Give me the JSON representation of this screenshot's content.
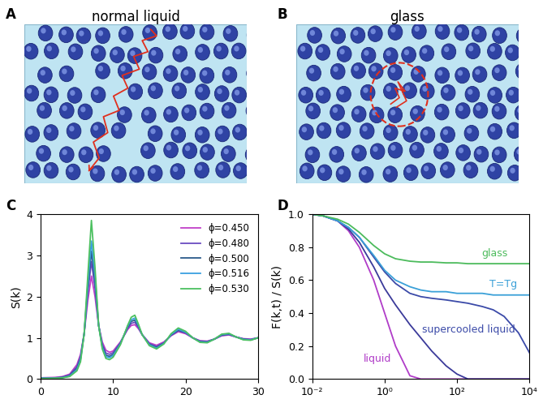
{
  "diagrams": [
    {
      "panel": "A",
      "title": "normal liquid"
    },
    {
      "panel": "B",
      "title": "glass"
    }
  ],
  "chart_data": [
    {
      "panel": "C",
      "type": "line",
      "y_label": "S(k)",
      "x": [
        0,
        2,
        3,
        4,
        5,
        5.5,
        6,
        6.5,
        7,
        7.5,
        8,
        8.5,
        9,
        9.5,
        10,
        11,
        12,
        12.5,
        13,
        13.5,
        14,
        15,
        16,
        17,
        18,
        19,
        20,
        21,
        22,
        23,
        24,
        25,
        26,
        27,
        28,
        29,
        30
      ],
      "xlim": [
        0,
        30
      ],
      "xticks": [
        0,
        10,
        20,
        30
      ],
      "ylim": [
        0,
        4
      ],
      "yticks": [
        0,
        1,
        2,
        3,
        4
      ],
      "legend": "upper right",
      "series": [
        {
          "name": "ϕ=0.450",
          "color": "#c040c8",
          "values": [
            0.03,
            0.04,
            0.06,
            0.12,
            0.35,
            0.6,
            1.1,
            1.9,
            2.5,
            2.0,
            1.3,
            0.9,
            0.7,
            0.65,
            0.68,
            0.9,
            1.2,
            1.3,
            1.32,
            1.22,
            1.08,
            0.88,
            0.82,
            0.9,
            1.05,
            1.15,
            1.1,
            1.0,
            0.93,
            0.92,
            0.97,
            1.05,
            1.07,
            1.02,
            0.98,
            0.97,
            1.0
          ]
        },
        {
          "name": "ϕ=0.480",
          "color": "#6a4cc0",
          "values": [
            0.02,
            0.03,
            0.05,
            0.1,
            0.3,
            0.55,
            1.1,
            2.1,
            2.85,
            2.2,
            1.3,
            0.85,
            0.63,
            0.6,
            0.64,
            0.88,
            1.23,
            1.35,
            1.38,
            1.25,
            1.08,
            0.86,
            0.79,
            0.88,
            1.06,
            1.17,
            1.12,
            1.0,
            0.92,
            0.91,
            0.97,
            1.06,
            1.08,
            1.02,
            0.97,
            0.96,
            1.0
          ]
        },
        {
          "name": "ϕ=0.500",
          "color": "#2a5a8a",
          "values": [
            0.02,
            0.02,
            0.04,
            0.08,
            0.26,
            0.5,
            1.1,
            2.2,
            3.1,
            2.35,
            1.3,
            0.8,
            0.58,
            0.55,
            0.6,
            0.86,
            1.26,
            1.4,
            1.43,
            1.28,
            1.08,
            0.84,
            0.77,
            0.87,
            1.07,
            1.19,
            1.13,
            1.0,
            0.91,
            0.9,
            0.97,
            1.07,
            1.09,
            1.02,
            0.97,
            0.95,
            1.0
          ]
        },
        {
          "name": "ϕ=0.516",
          "color": "#3aa0e0",
          "values": [
            0.02,
            0.02,
            0.03,
            0.07,
            0.23,
            0.47,
            1.1,
            2.3,
            3.35,
            2.5,
            1.3,
            0.77,
            0.54,
            0.52,
            0.57,
            0.85,
            1.28,
            1.44,
            1.48,
            1.3,
            1.08,
            0.83,
            0.75,
            0.86,
            1.08,
            1.21,
            1.14,
            1.0,
            0.9,
            0.89,
            0.97,
            1.08,
            1.1,
            1.02,
            0.96,
            0.95,
            1.0
          ]
        },
        {
          "name": "ϕ=0.530",
          "color": "#4cc060",
          "values": [
            0.01,
            0.02,
            0.03,
            0.06,
            0.2,
            0.42,
            1.1,
            2.5,
            3.85,
            2.7,
            1.3,
            0.73,
            0.5,
            0.47,
            0.53,
            0.83,
            1.3,
            1.5,
            1.55,
            1.33,
            1.08,
            0.81,
            0.73,
            0.85,
            1.1,
            1.24,
            1.16,
            1.0,
            0.89,
            0.88,
            0.97,
            1.09,
            1.11,
            1.02,
            0.95,
            0.94,
            1.0
          ]
        }
      ]
    },
    {
      "panel": "D",
      "type": "line",
      "y_label": "F(k,t) / S(k)",
      "log": "x",
      "x": [
        0.01,
        0.02,
        0.05,
        0.1,
        0.2,
        0.5,
        1,
        2,
        5,
        10,
        20,
        50,
        100,
        200,
        500,
        1000,
        2000,
        5000,
        10000
      ],
      "xlim": [
        0.01,
        10000
      ],
      "xticks": [
        {
          "value": 0.01,
          "label": "10⁻²"
        },
        {
          "value": 1,
          "label": "10⁰"
        },
        {
          "value": 100,
          "label": "10²"
        },
        {
          "value": 10000,
          "label": "10⁴"
        }
      ],
      "ylim": [
        0,
        1.0
      ],
      "yticks": [
        {
          "value": 0,
          "label": "0.0"
        },
        0.2,
        0.4,
        0.6,
        0.8,
        {
          "value": 1,
          "label": "1.0"
        }
      ],
      "series": [
        {
          "name": "liquid",
          "color": "#b03cc8",
          "values": [
            1.0,
            0.99,
            0.96,
            0.9,
            0.8,
            0.6,
            0.4,
            0.2,
            0.02,
            0,
            0,
            0,
            0,
            0,
            0,
            0,
            0,
            0,
            0
          ]
        },
        {
          "color": "#3b3a9a",
          "values": [
            1.0,
            0.99,
            0.96,
            0.91,
            0.83,
            0.68,
            0.55,
            0.45,
            0.33,
            0.25,
            0.17,
            0.08,
            0.03,
            0.0,
            0,
            0,
            0,
            0,
            0
          ]
        },
        {
          "name": "supercooled liquid",
          "color": "#3b4aa8",
          "values": [
            1.0,
            0.99,
            0.96,
            0.92,
            0.86,
            0.74,
            0.65,
            0.58,
            0.52,
            0.5,
            0.49,
            0.48,
            0.47,
            0.46,
            0.44,
            0.42,
            0.38,
            0.28,
            0.16
          ]
        },
        {
          "name": "T=Tg",
          "color": "#3aa0d8",
          "values": [
            1.0,
            0.99,
            0.96,
            0.92,
            0.86,
            0.75,
            0.66,
            0.6,
            0.56,
            0.54,
            0.53,
            0.53,
            0.52,
            0.52,
            0.52,
            0.51,
            0.51,
            0.51,
            0.51
          ]
        },
        {
          "name": "glass",
          "color": "#4cbb5c",
          "values": [
            1.0,
            0.99,
            0.97,
            0.94,
            0.89,
            0.81,
            0.76,
            0.73,
            0.715,
            0.71,
            0.71,
            0.705,
            0.705,
            0.7,
            0.7,
            0.7,
            0.7,
            0.7,
            0.7
          ]
        }
      ]
    }
  ]
}
